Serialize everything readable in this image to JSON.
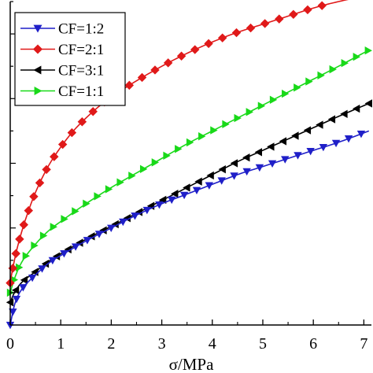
{
  "chart_data": {
    "type": "line",
    "title": "",
    "xlabel": "σ/MPa",
    "ylabel": "",
    "xlim": [
      0,
      7.15
    ],
    "ylim": [
      0,
      1.0
    ],
    "xticks": [
      "0",
      "1",
      "2",
      "3",
      "4",
      "5",
      "6",
      "7"
    ],
    "grid": false,
    "legend_position": "top-left",
    "series": [
      {
        "name": "CF=1:2",
        "color": "#1f1fc8",
        "marker": "triangle-down",
        "x": [
          0.0,
          0.1,
          0.25,
          0.5,
          0.75,
          1.0,
          1.5,
          2.0,
          2.5,
          3.0,
          3.5,
          4.0,
          4.5,
          5.0,
          5.5,
          6.0,
          6.5,
          7.1
        ],
        "y": [
          0.0,
          0.07,
          0.115,
          0.155,
          0.19,
          0.215,
          0.26,
          0.3,
          0.34,
          0.375,
          0.405,
          0.435,
          0.465,
          0.49,
          0.515,
          0.54,
          0.565,
          0.6
        ]
      },
      {
        "name": "CF=2:1",
        "color": "#e01919",
        "marker": "diamond",
        "x": [
          0.0,
          0.05,
          0.15,
          0.3,
          0.5,
          0.75,
          1.0,
          1.25,
          1.5,
          1.75,
          2.0,
          2.5,
          3.0,
          3.5,
          4.0,
          4.5,
          5.0,
          5.5,
          6.0,
          6.5,
          7.1
        ],
        "y": [
          0.13,
          0.175,
          0.245,
          0.325,
          0.41,
          0.49,
          0.55,
          0.6,
          0.64,
          0.675,
          0.705,
          0.755,
          0.8,
          0.84,
          0.875,
          0.905,
          0.93,
          0.955,
          0.98,
          1.0,
          1.02
        ]
      },
      {
        "name": "CF=3:1",
        "color": "#000000",
        "marker": "triangle-left",
        "x": [
          0.0,
          0.1,
          0.25,
          0.5,
          0.75,
          1.0,
          1.5,
          2.0,
          2.5,
          3.0,
          3.5,
          4.0,
          4.5,
          5.0,
          5.5,
          6.0,
          6.5,
          7.1
        ],
        "y": [
          0.07,
          0.105,
          0.135,
          0.165,
          0.195,
          0.22,
          0.265,
          0.305,
          0.345,
          0.385,
          0.425,
          0.465,
          0.505,
          0.54,
          0.575,
          0.61,
          0.645,
          0.685
        ]
      },
      {
        "name": "CF=1:1",
        "color": "#19d919",
        "marker": "triangle-right",
        "x": [
          0.0,
          0.1,
          0.25,
          0.5,
          0.75,
          1.0,
          1.5,
          2.0,
          2.5,
          3.0,
          3.5,
          4.0,
          4.5,
          5.0,
          5.5,
          6.0,
          6.5,
          7.1
        ],
        "y": [
          0.1,
          0.15,
          0.2,
          0.25,
          0.29,
          0.32,
          0.375,
          0.425,
          0.47,
          0.515,
          0.56,
          0.6,
          0.64,
          0.68,
          0.72,
          0.76,
          0.8,
          0.85
        ]
      }
    ]
  }
}
